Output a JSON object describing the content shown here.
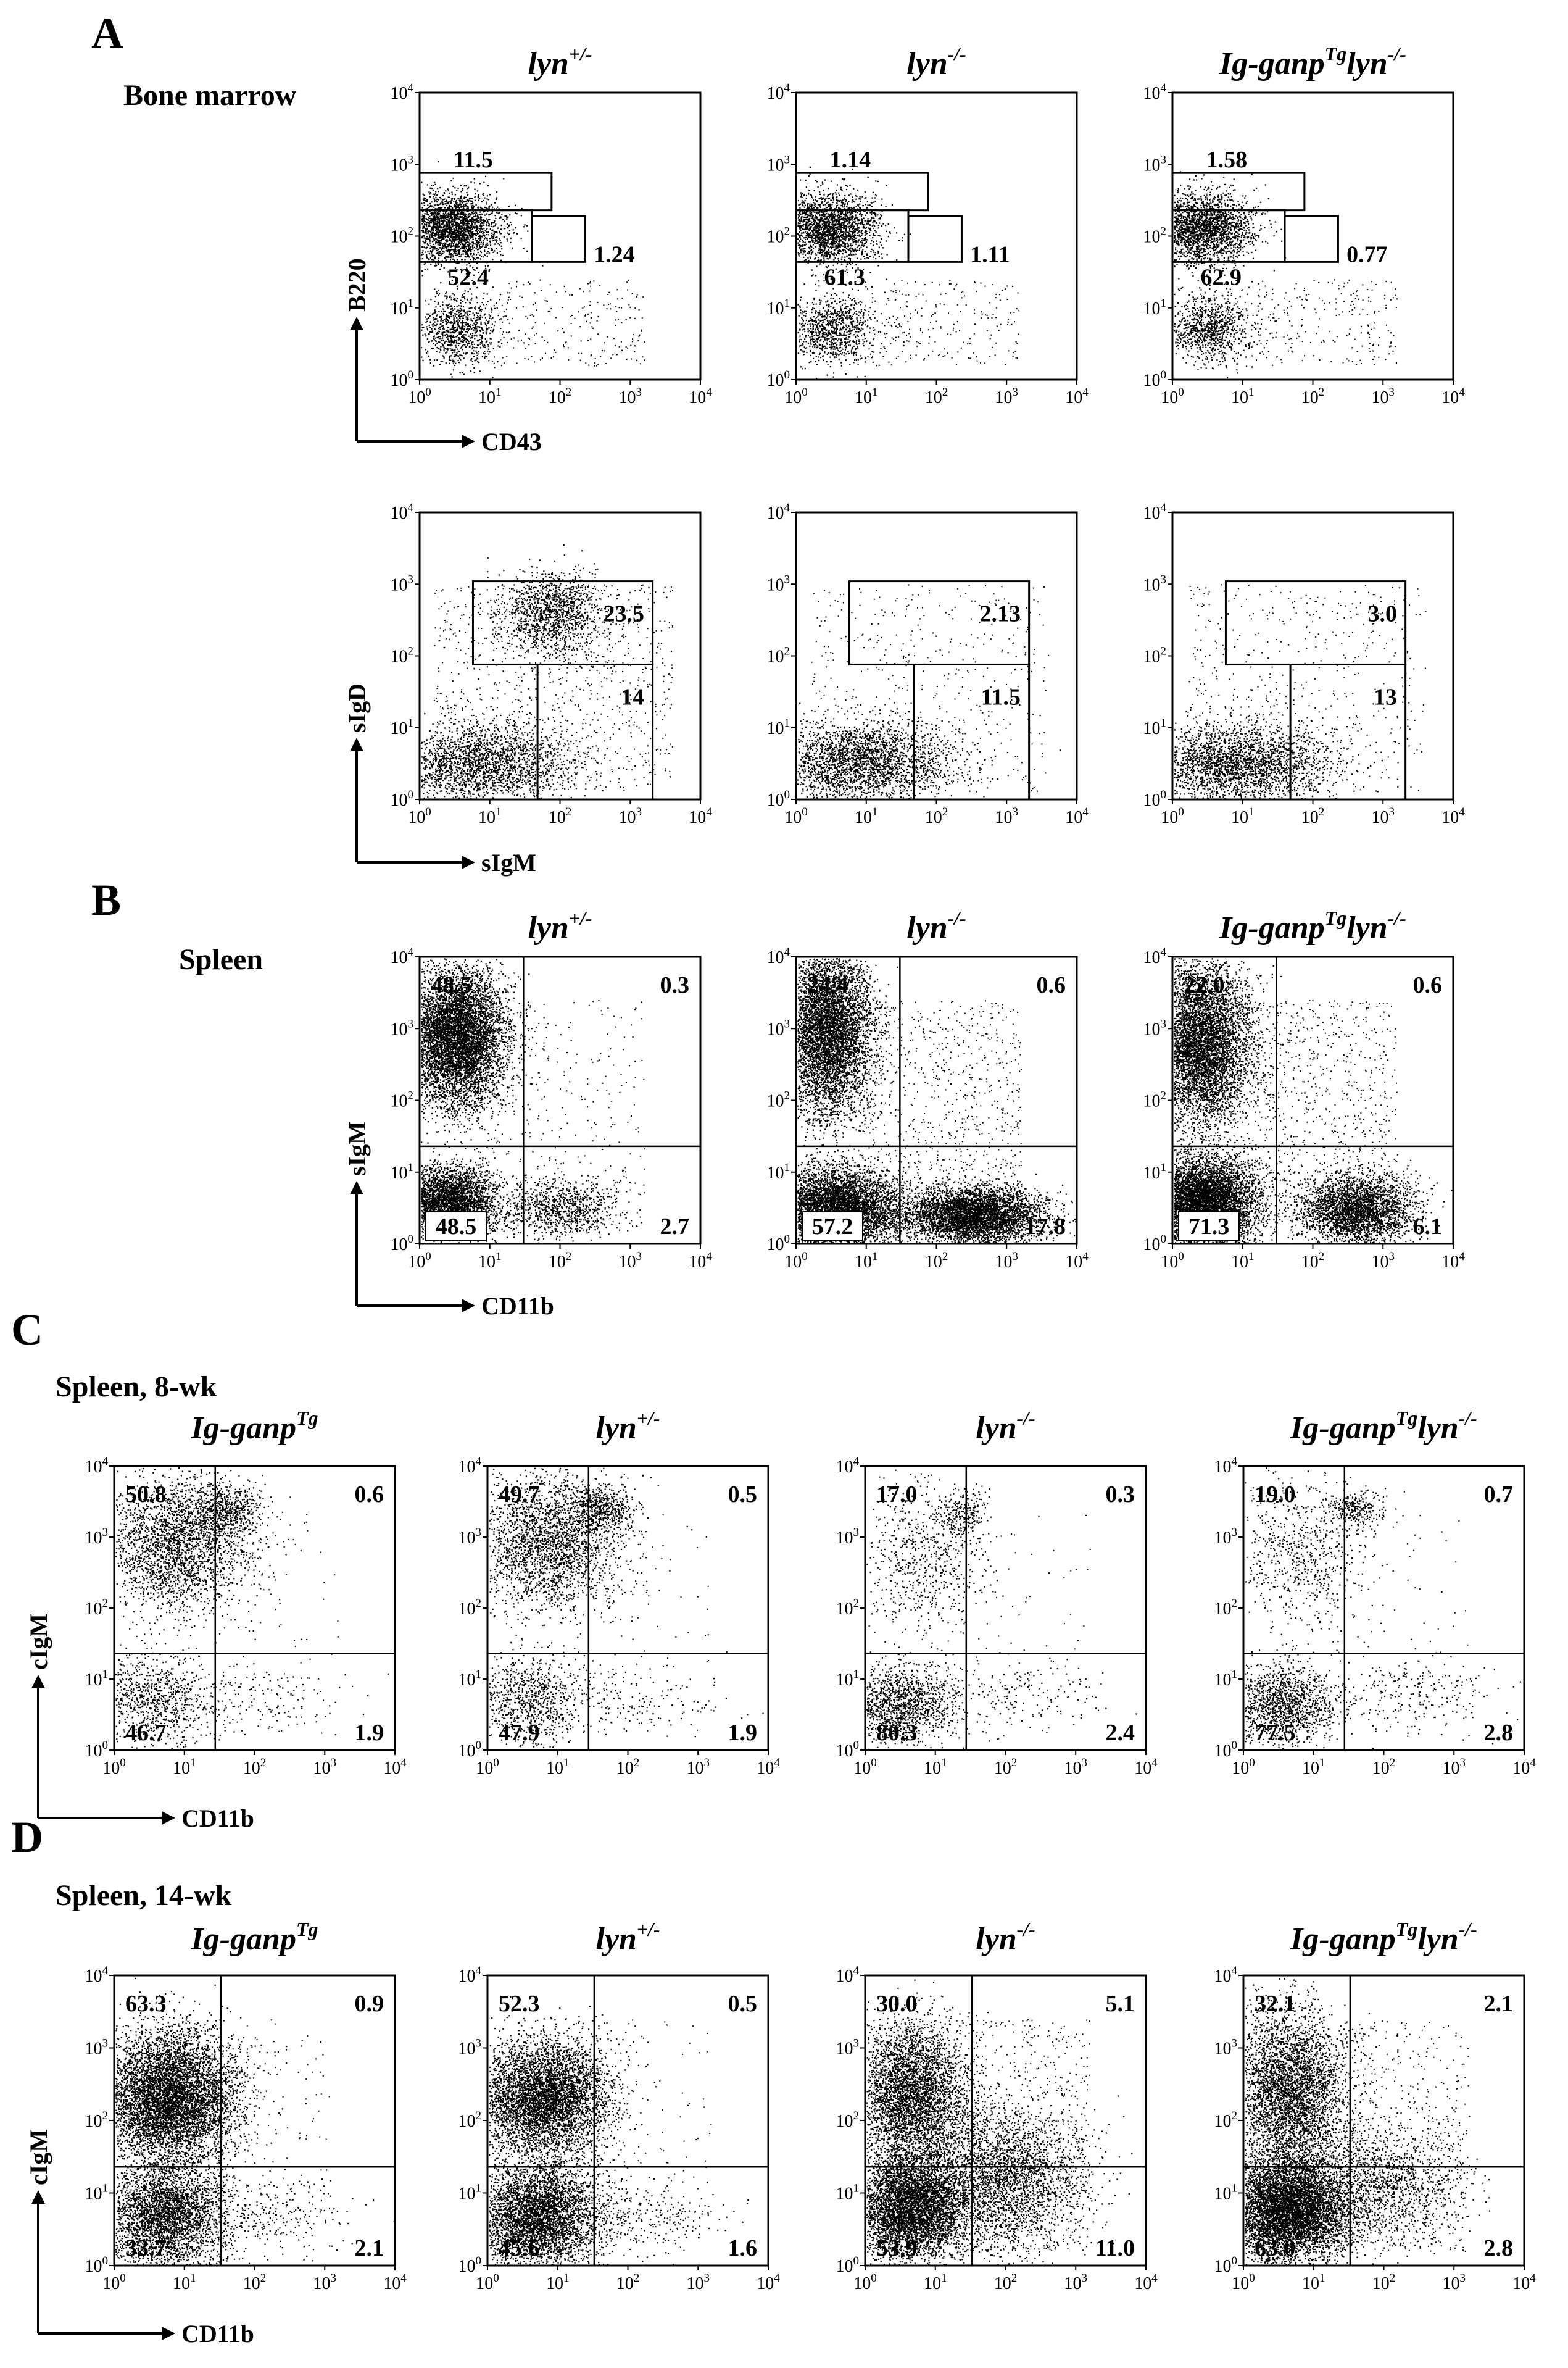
{
  "panels": {
    "A": {
      "letter": "A",
      "tissue": "Bone marrow",
      "genotypes": [
        {
          "main": "lyn",
          "sup": "+/-",
          "tg": ""
        },
        {
          "main": "lyn",
          "sup": "-/-",
          "tg": ""
        },
        {
          "main": "Ig-ganp",
          "sup": "Tg",
          "tail": "lyn",
          "tailsup": "-/-"
        }
      ],
      "row1": {
        "xlabel": "CD43",
        "ylabel": "B220",
        "plots": [
          {
            "top_gate": "11.5",
            "left_gate": "52.4",
            "right_gate": "1.24"
          },
          {
            "top_gate": "1.14",
            "left_gate": "61.3",
            "right_gate": "1.11"
          },
          {
            "top_gate": "1.58",
            "left_gate": "62.9",
            "right_gate": "0.77"
          }
        ]
      },
      "row2": {
        "xlabel": "sIgM",
        "ylabel": "sIgD",
        "plots": [
          {
            "upper_gate": "23.5",
            "lower_gate": "14"
          },
          {
            "upper_gate": "2.13",
            "lower_gate": "11.5"
          },
          {
            "upper_gate": "3.0",
            "lower_gate": "13"
          }
        ]
      }
    },
    "B": {
      "letter": "B",
      "tissue": "Spleen",
      "xlabel": "CD11b",
      "ylabel": "sIgM",
      "plots": [
        {
          "UL": "48.5",
          "UR": "0.3",
          "LL": "48.5",
          "LR": "2.7"
        },
        {
          "UL": "24.4",
          "UR": "0.6",
          "LL": "57.2",
          "LR": "17.8"
        },
        {
          "UL": "22.0",
          "UR": "0.6",
          "LL": "71.3",
          "LR": "6.1"
        }
      ]
    },
    "C": {
      "letter": "C",
      "tissue": "Spleen, 8-wk",
      "xlabel": "CD11b",
      "ylabel": "cIgM",
      "genotypes": [
        {
          "main": "Ig-ganp",
          "sup": "Tg"
        },
        {
          "main": "lyn",
          "sup": "+/-"
        },
        {
          "main": "lyn",
          "sup": "-/-"
        },
        {
          "main": "Ig-ganp",
          "sup": "Tg",
          "tail": "lyn",
          "tailsup": "-/-"
        }
      ],
      "plots": [
        {
          "UL": "50.8",
          "UR": "0.6",
          "LL": "46.7",
          "LR": "1.9"
        },
        {
          "UL": "49.7",
          "UR": "0.5",
          "LL": "47.9",
          "LR": "1.9"
        },
        {
          "UL": "17.0",
          "UR": "0.3",
          "LL": "80.3",
          "LR": "2.4"
        },
        {
          "UL": "19.0",
          "UR": "0.7",
          "LL": "77.5",
          "LR": "2.8"
        }
      ]
    },
    "D": {
      "letter": "D",
      "tissue": "Spleen, 14-wk",
      "xlabel": "CD11b",
      "ylabel": "cIgM",
      "plots": [
        {
          "UL": "63.3",
          "UR": "0.9",
          "LL": "33.7",
          "LR": "2.1"
        },
        {
          "UL": "52.3",
          "UR": "0.5",
          "LL": "45.6",
          "LR": "1.6"
        },
        {
          "UL": "30.0",
          "UR": "5.1",
          "LL": "53.9",
          "LR": "11.0"
        },
        {
          "UL": "32.1",
          "UR": "2.1",
          "LL": "63.0",
          "LR": "2.8"
        }
      ]
    }
  },
  "axis_ticks": [
    "0",
    "1",
    "2",
    "3",
    "4"
  ],
  "axis_base": "10"
}
